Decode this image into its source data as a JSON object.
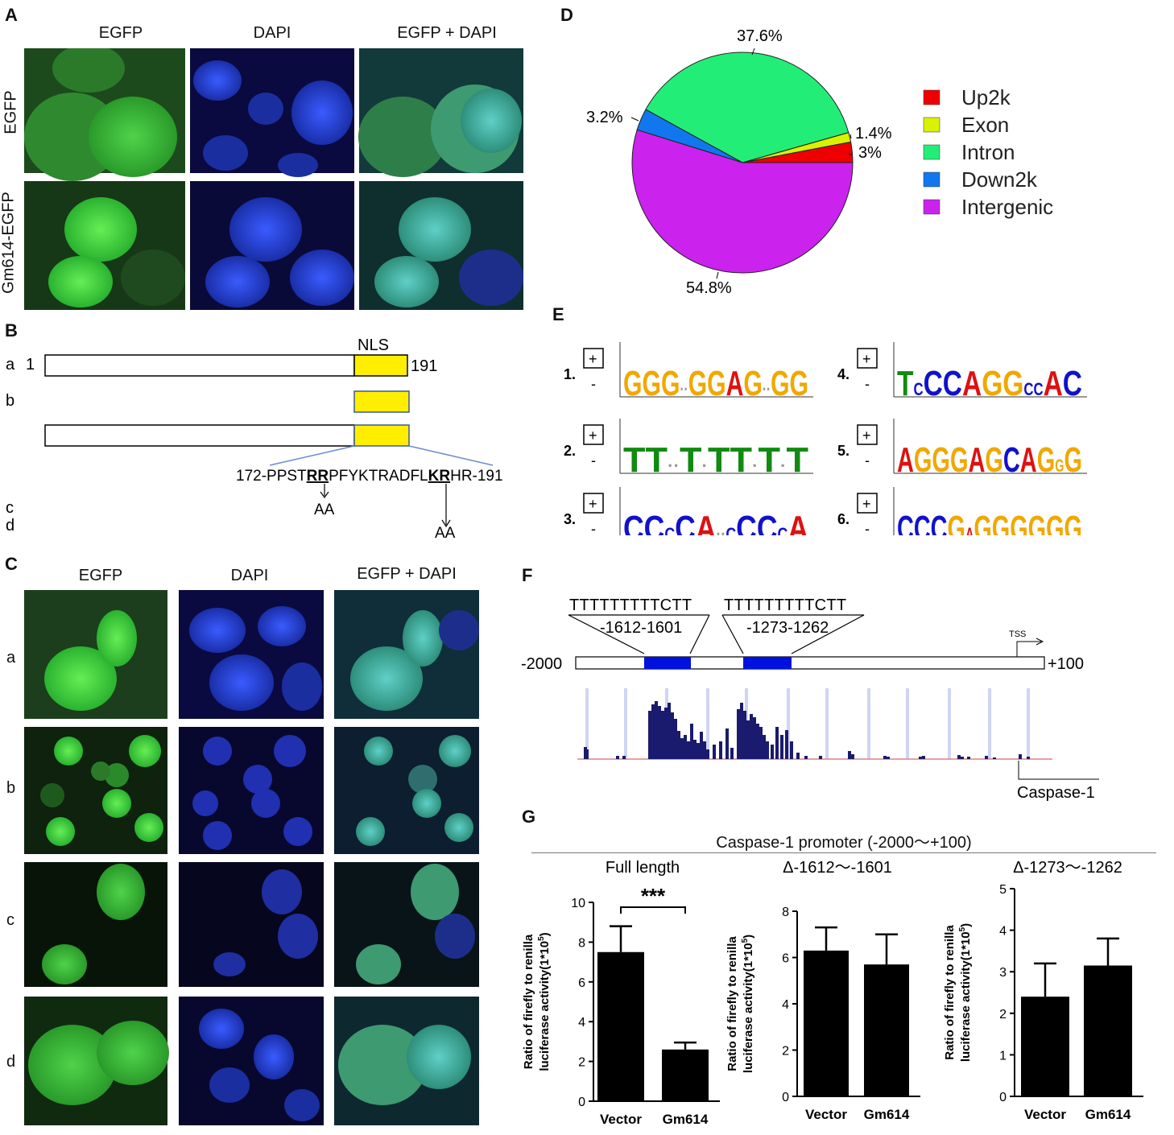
{
  "panelA": {
    "letter": "A",
    "cols": [
      "EGFP",
      "DAPI",
      "EGFP + DAPI"
    ],
    "rows": [
      "EGFP",
      "Gm614-EGFP"
    ]
  },
  "panelB": {
    "letter": "B",
    "nls": "NLS",
    "start": "1",
    "end": "191",
    "rows": [
      "a",
      "b",
      "c",
      "d"
    ],
    "seq_prefix": "172-PPST",
    "seq_rr": "RR",
    "seq_mid": "PFYKTRADFL",
    "seq_kr": "KR",
    "seq_suffix": "HR-191",
    "mut1": "AA",
    "mut2": "AA"
  },
  "panelC": {
    "letter": "C",
    "cols": [
      "EGFP",
      "DAPI",
      "EGFP + DAPI"
    ],
    "rows": [
      "a",
      "b",
      "c",
      "d"
    ]
  },
  "panelD": {
    "letter": "D",
    "chart_data": {
      "type": "pie",
      "categories": [
        "Up2k",
        "Exon",
        "Intron",
        "Down2k",
        "Intergenic"
      ],
      "values": [
        3,
        1.4,
        37.6,
        3.2,
        54.8
      ],
      "labels": [
        "3%",
        "1.4%",
        "37.6%",
        "3.2%",
        "54.8%"
      ],
      "colors": [
        "#ee0000",
        "#d8f200",
        "#22ee77",
        "#1177ee",
        "#cc22ee"
      ],
      "legend": "right"
    }
  },
  "panelE": {
    "letter": "E",
    "plus": "+",
    "minus": "-",
    "motifs": [
      {
        "num": "1.",
        "seq": "GGG..GGAG..GG"
      },
      {
        "num": "2.",
        "seq": "TT..T.TT.T.T"
      },
      {
        "num": "3.",
        "seq": "CCcCA..cCCcA"
      },
      {
        "num": "4.",
        "seq": "TcCCAGGccAC"
      },
      {
        "num": "5.",
        "seq": "AGGGAGCAGgG"
      },
      {
        "num": "6.",
        "seq": "CCCGaGGGGGG"
      }
    ]
  },
  "panelF": {
    "letter": "F",
    "seq1": "TTTTTTTTTCTT",
    "seq2": "TTTTTTTTTCTT",
    "pos1": "-1612-1601",
    "pos2": "-1273-1262",
    "left": "-2000",
    "right": "+100",
    "tss": "TSS",
    "gene": "Caspase-1"
  },
  "panelG": {
    "letter": "G",
    "title": "Caspase-1 promoter (-2000～+100)",
    "ylabel_1": "Ratio of firefly to renilla",
    "ylabel_2": "luciferase activity(1*10",
    "ylabel_sup": "5",
    "ylabel_end": ")",
    "sig": "***",
    "chart_data": [
      {
        "type": "bar",
        "title": "Full length",
        "categories": [
          "Vector",
          "Gm614"
        ],
        "values": [
          7.5,
          2.6
        ],
        "errors": [
          1.3,
          0.35
        ],
        "ylim": [
          0,
          10
        ],
        "ticks": [
          0,
          2,
          4,
          6,
          8,
          10
        ]
      },
      {
        "type": "bar",
        "title": "Δ-1612～-1601",
        "categories": [
          "Vector",
          "Gm614"
        ],
        "values": [
          6.3,
          5.7
        ],
        "errors": [
          1.0,
          1.3
        ],
        "ylim": [
          0,
          8
        ],
        "ticks": [
          0,
          2,
          4,
          6,
          8
        ]
      },
      {
        "type": "bar",
        "title": "Δ-1273～-1262",
        "categories": [
          "Vector",
          "Gm614"
        ],
        "values": [
          2.4,
          3.15
        ],
        "errors": [
          0.8,
          0.65
        ],
        "ylim": [
          0,
          5
        ],
        "ticks": [
          0,
          1,
          2,
          3,
          4,
          5
        ]
      }
    ]
  }
}
